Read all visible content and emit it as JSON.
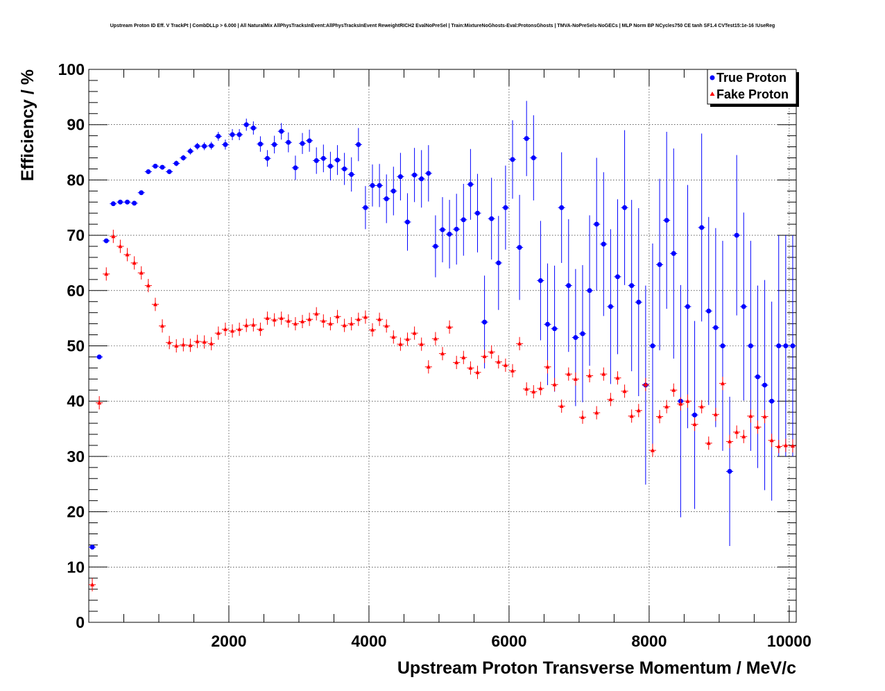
{
  "chart_data": {
    "type": "scatter",
    "title": "Upstream Proton ID Eff. V TrackPt | CombDLLp > 6.000 | All NaturalMix AllPhysTracksInEvent:AllPhysTracksInEvent ReweightRICH2 EvalNoPreSel | Train:MixtureNoGhosts-Eval:ProtonsGhosts | TMVA-NoPreSels-NoGECs | MLP Norm BP NCycles750 CE tanh SF1.4 CVTest15:1e-16 !UseReg",
    "xlabel": "Upstream Proton Transverse Momentum / MeV/c",
    "ylabel": "Efficiency / %",
    "xlim": [
      0,
      10100
    ],
    "ylim": [
      0,
      100
    ],
    "xticks": [
      2000,
      4000,
      6000,
      8000,
      10000
    ],
    "yticks": [
      0,
      10,
      20,
      30,
      40,
      50,
      60,
      70,
      80,
      90,
      100
    ],
    "grid": true,
    "legend_position": "top-right",
    "bin_width": 100,
    "series": [
      {
        "name": "True Proton",
        "color": "#0000ff",
        "marker": "circle",
        "x": [
          50,
          150,
          250,
          350,
          450,
          550,
          650,
          750,
          850,
          950,
          1050,
          1150,
          1250,
          1350,
          1450,
          1550,
          1650,
          1750,
          1850,
          1950,
          2050,
          2150,
          2250,
          2350,
          2450,
          2550,
          2650,
          2750,
          2850,
          2950,
          3050,
          3150,
          3250,
          3350,
          3450,
          3550,
          3650,
          3750,
          3850,
          3950,
          4050,
          4150,
          4250,
          4350,
          4450,
          4550,
          4650,
          4750,
          4850,
          4950,
          5050,
          5150,
          5250,
          5350,
          5450,
          5550,
          5650,
          5750,
          5850,
          5950,
          6050,
          6150,
          6250,
          6350,
          6450,
          6550,
          6650,
          6750,
          6850,
          6950,
          7050,
          7150,
          7250,
          7350,
          7450,
          7550,
          7650,
          7750,
          7850,
          7950,
          8050,
          8150,
          8250,
          8350,
          8450,
          8550,
          8650,
          8750,
          8850,
          8950,
          9050,
          9150,
          9250,
          9350,
          9450,
          9550,
          9650,
          9750,
          9850,
          9950,
          10050
        ],
        "y": [
          13.6,
          48.0,
          69.0,
          75.7,
          76.0,
          76.0,
          75.8,
          77.7,
          81.5,
          82.5,
          82.3,
          81.5,
          83.0,
          84.0,
          85.2,
          86.1,
          86.1,
          86.2,
          87.9,
          86.4,
          88.2,
          88.2,
          90.0,
          89.4,
          86.5,
          83.9,
          86.4,
          88.8,
          86.8,
          82.2,
          86.6,
          87.1,
          83.5,
          83.9,
          82.5,
          83.6,
          82.0,
          81.0,
          86.4,
          75.0,
          79.0,
          79.0,
          76.6,
          78.0,
          80.6,
          72.4,
          80.9,
          80.2,
          81.2,
          68.0,
          71.0,
          70.2,
          71.1,
          72.8,
          79.2,
          74.0,
          54.3,
          73.0,
          65.0,
          75.0,
          83.7,
          67.8,
          87.5,
          84.0,
          61.8,
          53.9,
          53.1,
          75.0,
          60.9,
          51.5,
          52.2,
          60.0,
          72.0,
          68.4,
          57.1,
          62.5,
          75.0,
          60.9,
          57.9,
          42.9,
          50.0,
          64.7,
          72.7,
          66.7,
          40.0,
          57.1,
          37.5,
          71.4,
          56.3,
          53.3,
          50.0,
          27.3,
          70.0,
          57.1,
          50.0,
          44.4,
          42.9,
          40.0,
          50.0,
          50.0,
          50.0
        ],
        "yerr": [
          0.4,
          0.4,
          0.3,
          0.3,
          0.3,
          0.3,
          0.3,
          0.3,
          0.3,
          0.3,
          0.4,
          0.4,
          0.5,
          0.5,
          0.6,
          0.6,
          0.7,
          0.7,
          0.8,
          0.9,
          1.0,
          1.0,
          1.1,
          1.2,
          1.4,
          1.5,
          1.6,
          1.5,
          1.8,
          2.2,
          1.9,
          2.0,
          2.4,
          2.5,
          2.6,
          2.7,
          2.9,
          3.1,
          3.0,
          3.9,
          3.8,
          3.9,
          4.4,
          4.4,
          4.3,
          5.2,
          4.9,
          5.2,
          5.1,
          5.6,
          5.9,
          6.2,
          6.4,
          6.5,
          6.4,
          7.1,
          8.4,
          7.4,
          8.5,
          7.6,
          7.1,
          9.5,
          6.8,
          7.7,
          10.8,
          11.0,
          11.4,
          10.0,
          12.0,
          12.4,
          12.4,
          13.6,
          12.0,
          13.0,
          14.0,
          14.0,
          14.0,
          15.5,
          17.0,
          18.0,
          18.5,
          15.5,
          16.0,
          19.0,
          21.0,
          22.0,
          17.0,
          17.0,
          17.0,
          18.0,
          19.0,
          13.5,
          14.5,
          17.0,
          19.0,
          16.5,
          19.0,
          18.0,
          20.0,
          20.0,
          20.0
        ]
      },
      {
        "name": "Fake Proton",
        "color": "#ff0000",
        "marker": "triangle",
        "x": [
          50,
          150,
          250,
          350,
          450,
          550,
          650,
          750,
          850,
          950,
          1050,
          1150,
          1250,
          1350,
          1450,
          1550,
          1650,
          1750,
          1850,
          1950,
          2050,
          2150,
          2250,
          2350,
          2450,
          2550,
          2650,
          2750,
          2850,
          2950,
          3050,
          3150,
          3250,
          3350,
          3450,
          3550,
          3650,
          3750,
          3850,
          3950,
          4050,
          4150,
          4250,
          4350,
          4450,
          4550,
          4650,
          4750,
          4850,
          4950,
          5050,
          5150,
          5250,
          5350,
          5450,
          5550,
          5650,
          5750,
          5850,
          5950,
          6050,
          6150,
          6250,
          6350,
          6450,
          6550,
          6650,
          6750,
          6850,
          6950,
          7050,
          7150,
          7250,
          7350,
          7450,
          7550,
          7650,
          7750,
          7850,
          7950,
          8050,
          8150,
          8250,
          8350,
          8450,
          8550,
          8650,
          8750,
          8850,
          8950,
          9050,
          9150,
          9250,
          9350,
          9450,
          9550,
          9650,
          9750,
          9850,
          9950,
          10050
        ],
        "y": [
          6.8,
          39.7,
          63.0,
          69.8,
          68.0,
          66.5,
          65.0,
          63.2,
          60.9,
          57.5,
          53.6,
          50.6,
          50.0,
          50.2,
          50.1,
          50.8,
          50.7,
          50.4,
          52.3,
          53.0,
          52.7,
          53.0,
          53.7,
          53.8,
          53.0,
          55.0,
          54.7,
          55.0,
          54.5,
          54.0,
          54.4,
          54.8,
          55.8,
          54.5,
          54.0,
          55.3,
          53.7,
          54.0,
          54.8,
          55.2,
          52.9,
          54.8,
          53.6,
          51.6,
          50.3,
          51.2,
          52.3,
          50.3,
          46.2,
          51.3,
          48.6,
          53.4,
          47.0,
          47.9,
          46.0,
          45.2,
          48.1,
          48.9,
          47.1,
          46.5,
          45.5,
          50.4,
          42.2,
          41.7,
          42.3,
          46.2,
          43.0,
          39.1,
          44.9,
          44.0,
          37.1,
          44.6,
          37.9,
          44.9,
          40.3,
          44.2,
          41.8,
          37.3,
          38.3,
          43.0,
          31.1,
          37.2,
          39.0,
          42.0,
          39.5,
          40.0,
          35.8,
          39.0,
          32.4,
          37.6,
          43.2,
          32.7,
          34.4,
          33.6,
          37.3,
          35.3,
          37.2,
          32.9,
          31.8,
          32.0,
          31.9
        ]
      }
    ]
  }
}
